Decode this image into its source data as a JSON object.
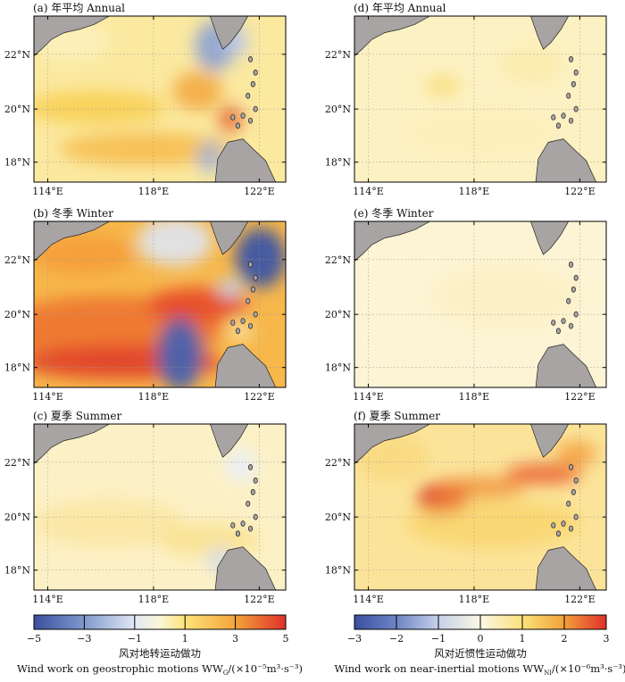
{
  "panels": [
    {
      "id": "a",
      "title": "(a) 年平均 Annual",
      "intensity": 0.35
    },
    {
      "id": "d",
      "title": "(d) 年平均 Annual",
      "intensity": 0.12
    },
    {
      "id": "b",
      "title": "(b) 冬季 Winter",
      "intensity": 1.0
    },
    {
      "id": "e",
      "title": "(e) 冬季 Winter",
      "intensity": 0.05
    },
    {
      "id": "c",
      "title": "(c) 夏季 Summer",
      "intensity": 0.2
    },
    {
      "id": "f",
      "title": "(f) 夏季 Summer",
      "intensity": 0.7
    }
  ],
  "axes": {
    "lat_labels": [
      "22°N",
      "20°N",
      "18°N"
    ],
    "lon_labels": [
      "114°E",
      "118°E",
      "122°E"
    ]
  },
  "colorbars": [
    {
      "ticks": [
        "−5",
        "−3",
        "−1",
        "1",
        "3",
        "5"
      ],
      "title_cn": "风对地转运动做功",
      "title_en": "Wind work on geostrophic motions WW",
      "subscript": "G",
      "unit": "/(×10⁻⁵m³·s⁻³)",
      "range": [
        -5,
        5
      ]
    },
    {
      "ticks": [
        "−3",
        "−2",
        "−1",
        "0",
        "1",
        "2",
        "3"
      ],
      "title_cn": "风对近惯性运动做功",
      "title_en": "Wind work on near-inertial motions WW",
      "subscript": "NI",
      "unit": "/(×10⁻⁶m³·s⁻³)",
      "range": [
        -3,
        3
      ]
    }
  ],
  "colors": {
    "land": "#a8a4a4",
    "frame": "#000000",
    "cmap": [
      "#3a4fa0",
      "#6f86c4",
      "#b8c6e4",
      "#f4f6fb",
      "#fdf2b0",
      "#f8d445",
      "#f2a23a",
      "#ea5a2a",
      "#d8262a"
    ]
  }
}
